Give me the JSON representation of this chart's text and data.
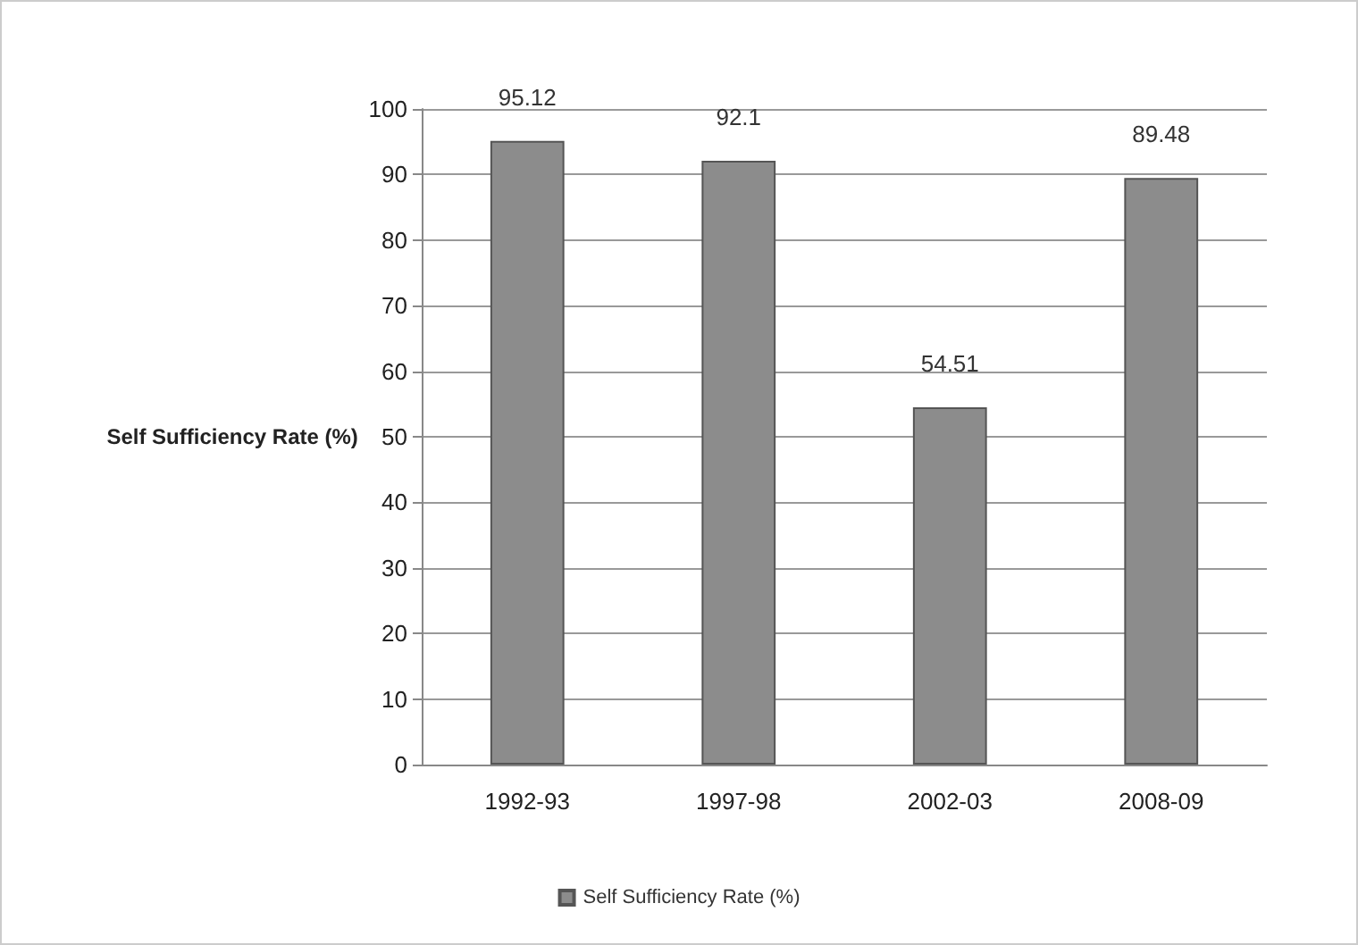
{
  "chart_data": {
    "type": "bar",
    "categories": [
      "1992-93",
      "1997-98",
      "2002-03",
      "2008-09"
    ],
    "series": [
      {
        "name": "Self Sufficiency Rate (%)",
        "color": "#8c8c8c",
        "values": [
          95.12,
          92.1,
          54.51,
          89.48
        ]
      }
    ],
    "ylabel": "Self Sufficiency Rate (%)",
    "ylim": [
      0,
      100
    ],
    "yticks": [
      0,
      10,
      20,
      30,
      40,
      50,
      60,
      70,
      80,
      90,
      100
    ],
    "grid": "y",
    "legend": "bottom",
    "data_labels": true
  }
}
